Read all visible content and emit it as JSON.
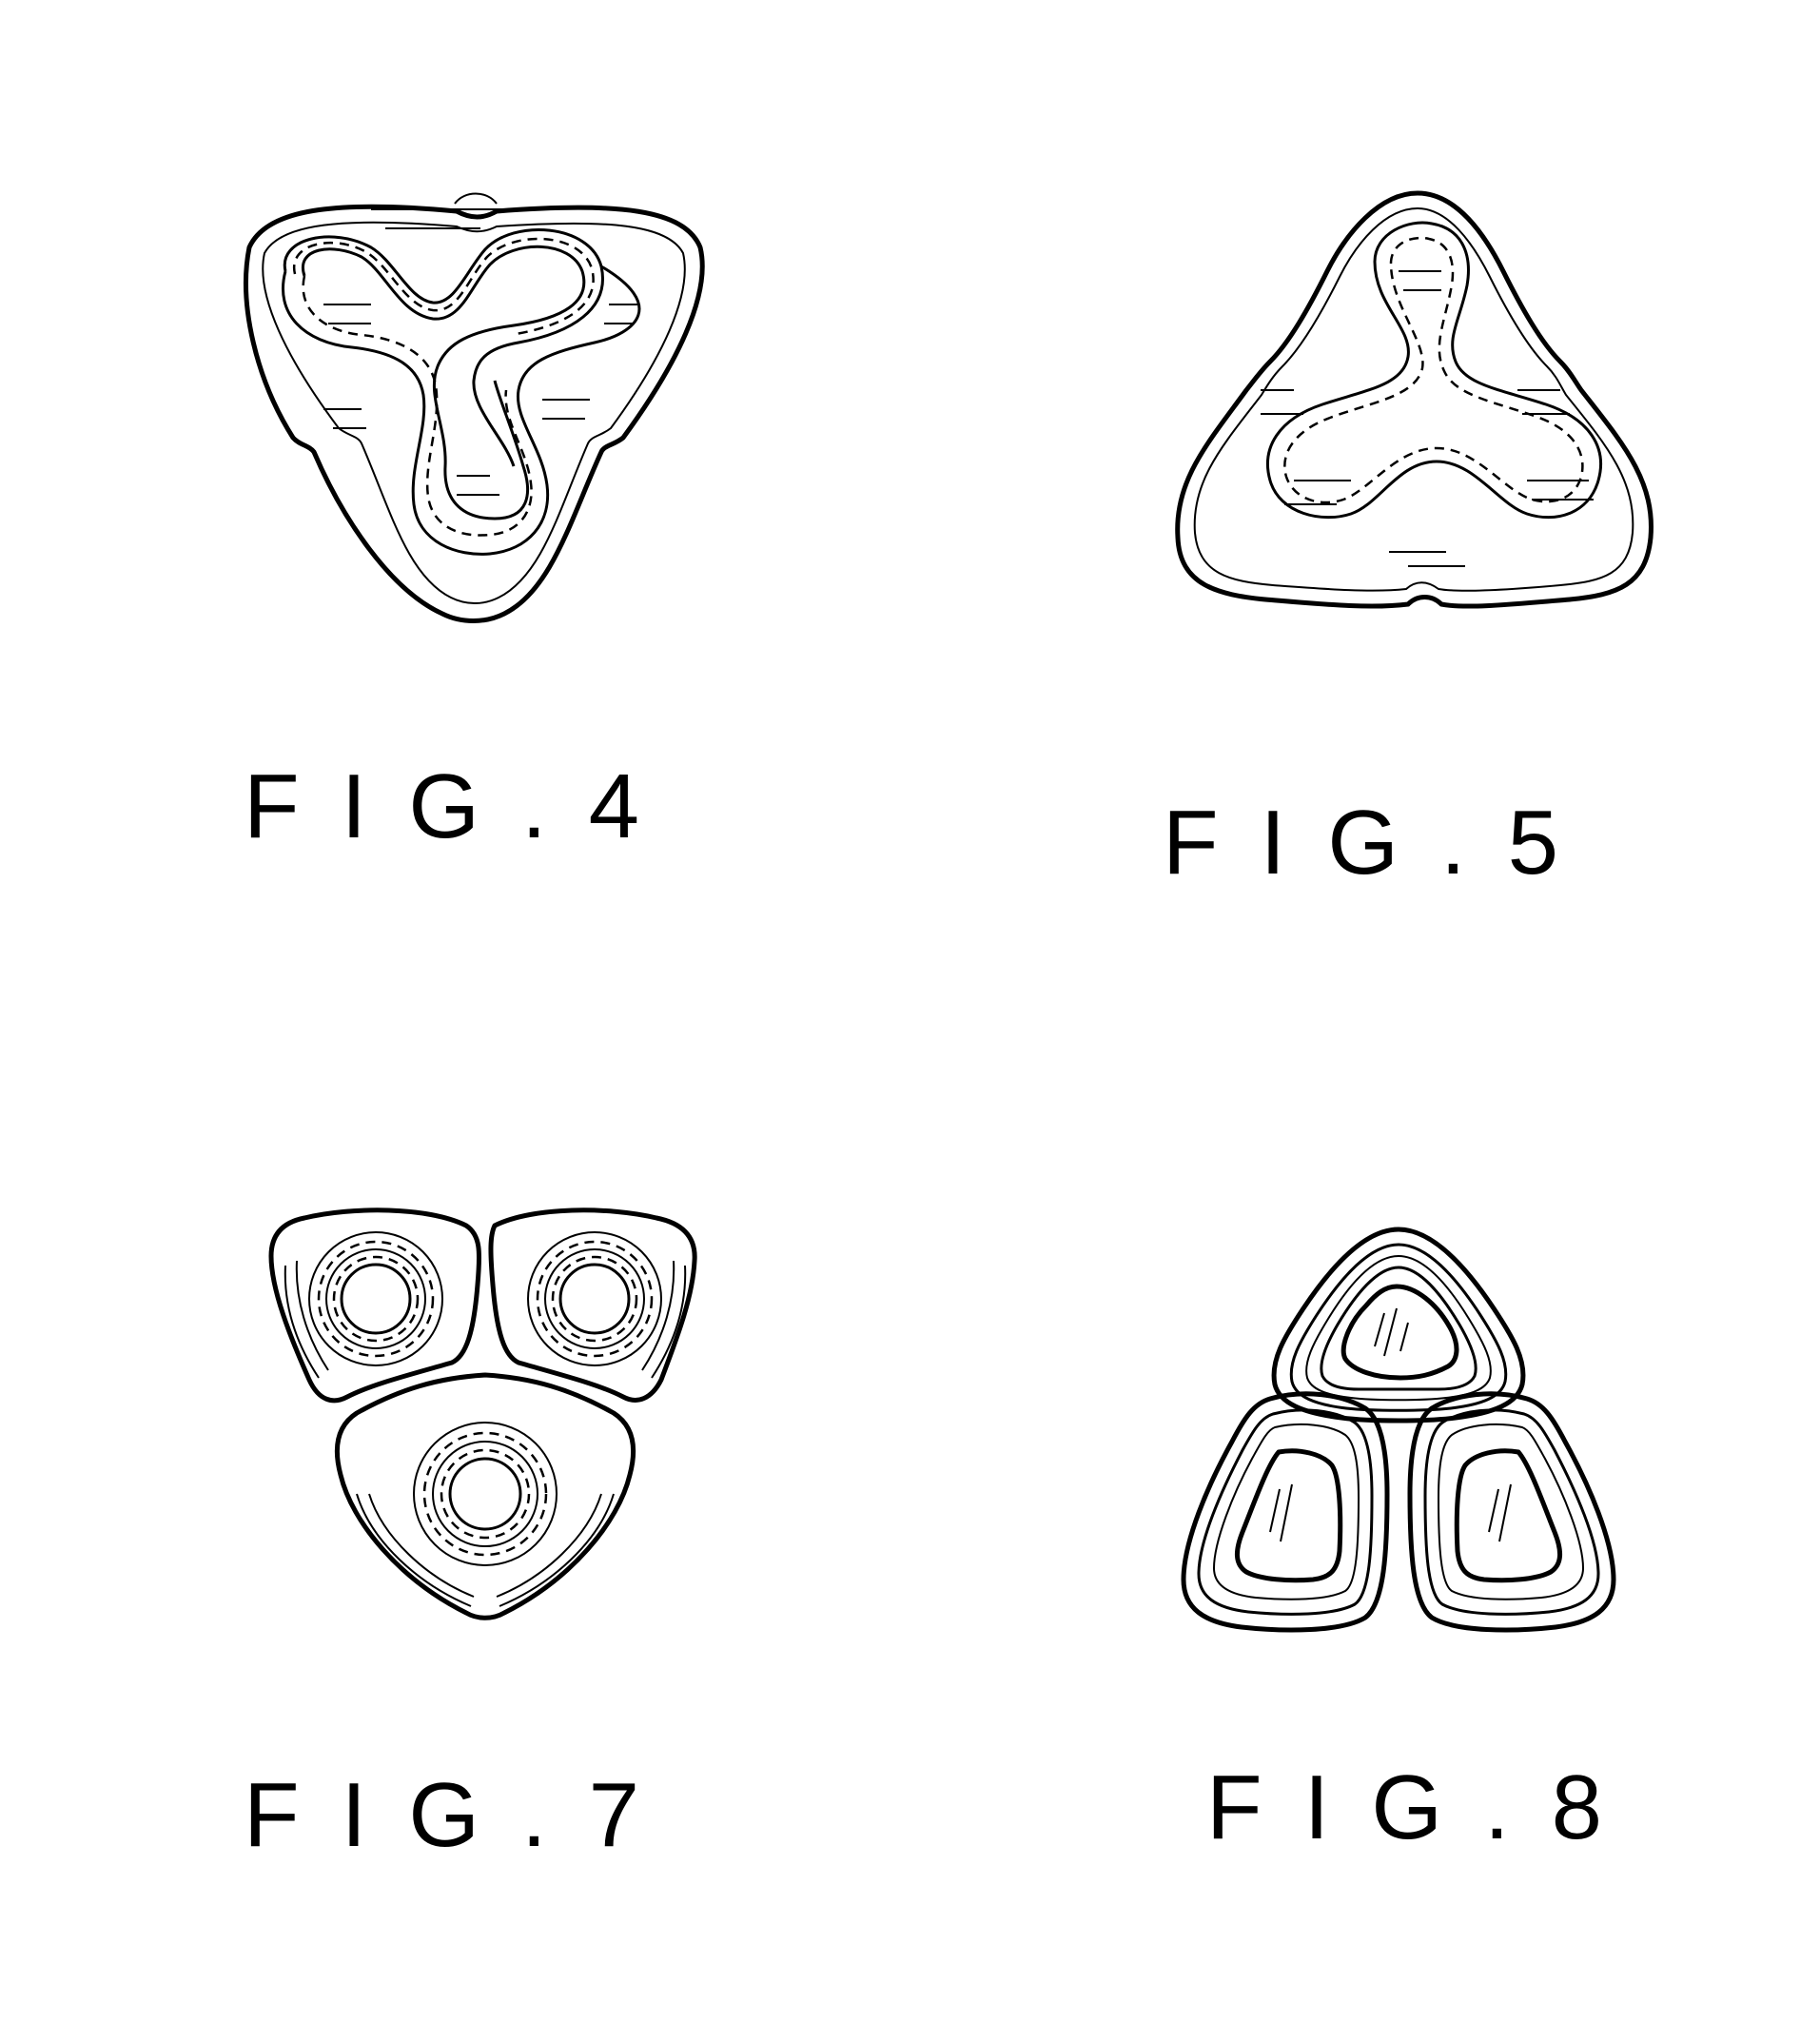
{
  "figures": [
    {
      "label": "FIG.4"
    },
    {
      "label": "FIG.5"
    },
    {
      "label": "FIG.7"
    },
    {
      "label": "FIG.8"
    }
  ],
  "colors": {
    "ink": "#000000",
    "paper": "#ffffff"
  }
}
